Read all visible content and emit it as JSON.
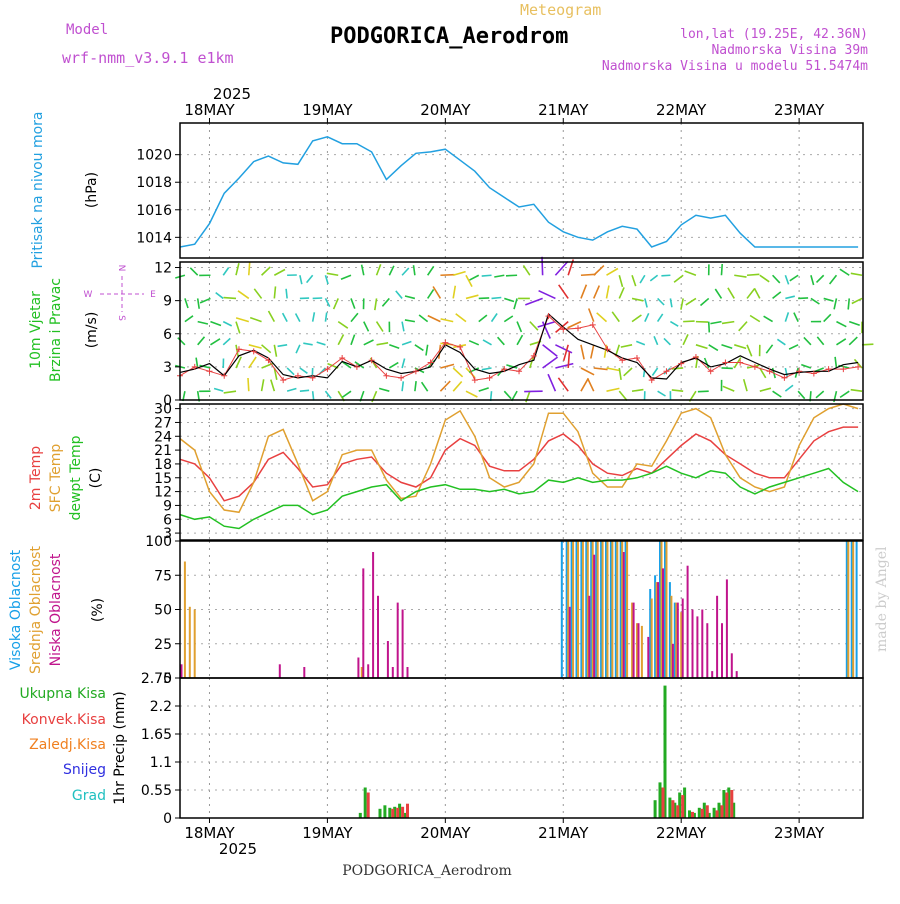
{
  "header": {
    "model_label": "Model",
    "model_name": "wrf-nmm_v3.9.1 e1km",
    "meteogram_label": "Meteogram",
    "station": "PODGORICA_Aerodrom",
    "coords": "lon,lat (19.25E, 42.36N)",
    "elevation": "Nadmorska Visina 39m",
    "model_elevation": "Nadmorska Visina u modelu 51.5474m",
    "year": "2025",
    "footer_station": "PODGORICA_Aerodrom",
    "credit": "made by Angel"
  },
  "colors": {
    "pressure": "#22a0e0",
    "t2m": "#e84040",
    "sfc": "#e0a030",
    "dewpt": "#22c022",
    "high_cloud": "#18a0e8",
    "mid_cloud": "#e0a030",
    "low_cloud": "#c0148c",
    "total_precip": "#22aa22",
    "conv_precip": "#e84040",
    "frozen_precip": "#f08020",
    "snow": "#3030e0",
    "grad": "#20c0c0",
    "wind_label": "#22c022",
    "compass": "#c050d0"
  },
  "compass": {
    "n": "N",
    "s": "S",
    "e": "E",
    "w": "W"
  },
  "chart_data": [
    {
      "type": "line",
      "name": "pressure",
      "ylabel_lines": [
        "Pritisak na nivou mora"
      ],
      "unit": "(hPa)",
      "ylim": [
        1012.5,
        1022.3
      ],
      "yticks": [
        1014,
        1016,
        1018,
        1020
      ],
      "x_days": [
        "18MAY",
        "19MAY",
        "20MAY",
        "21MAY",
        "22MAY",
        "23MAY"
      ],
      "x_hours": [
        0,
        3,
        6,
        9,
        12,
        15,
        18,
        21,
        24,
        27,
        30,
        33,
        36,
        39,
        42,
        45,
        48,
        51,
        54,
        57,
        60,
        63,
        66,
        69,
        72,
        75,
        78,
        81,
        84,
        87,
        90,
        93,
        96,
        99,
        102,
        105,
        108,
        111,
        114,
        117,
        120,
        123,
        126,
        129,
        132,
        135,
        138
      ],
      "values": [
        1013.3,
        1013.5,
        1015.0,
        1017.2,
        1018.3,
        1019.5,
        1019.9,
        1019.4,
        1019.3,
        1021.0,
        1021.3,
        1020.8,
        1020.8,
        1020.2,
        1018.2,
        1019.2,
        1020.1,
        1020.2,
        1020.4,
        1019.6,
        1018.8,
        1017.6,
        1016.9,
        1016.2,
        1016.4,
        1015.1,
        1014.4,
        1014.0,
        1013.8,
        1014.4,
        1014.8,
        1014.6,
        1013.3,
        1013.7,
        1014.9,
        1015.6,
        1015.4,
        1015.6,
        1014.3,
        1013.3,
        1013.3,
        1013.3,
        1013.3,
        1013.3,
        1013.3,
        1013.3,
        1013.3
      ]
    },
    {
      "type": "line",
      "name": "wind",
      "ylabel_lines": [
        "10m Vjetar",
        "Brzina i Pravac"
      ],
      "unit": "(m/s)",
      "ylim": [
        0,
        12.5
      ],
      "yticks": [
        0,
        3,
        6,
        9,
        12
      ],
      "x_hours": [
        0,
        3,
        6,
        9,
        12,
        15,
        18,
        21,
        24,
        27,
        30,
        33,
        36,
        39,
        42,
        45,
        48,
        51,
        54,
        57,
        60,
        63,
        66,
        69,
        72,
        75,
        78,
        81,
        84,
        87,
        90,
        93,
        96,
        99,
        102,
        105,
        108,
        111,
        114,
        117,
        120,
        123,
        126,
        129,
        132,
        135,
        138
      ],
      "values": [
        2.5,
        2.8,
        3.3,
        2.2,
        4.0,
        4.5,
        3.8,
        2.3,
        2.0,
        2.2,
        2.0,
        3.5,
        3.0,
        3.6,
        2.8,
        2.4,
        2.6,
        3.0,
        5.0,
        4.3,
        2.8,
        2.4,
        2.6,
        3.2,
        3.6,
        7.8,
        6.6,
        5.5,
        5.0,
        4.5,
        3.8,
        3.4,
        2.0,
        1.9,
        3.4,
        3.8,
        3.0,
        3.3,
        4.0,
        3.4,
        2.8,
        2.3,
        2.5,
        2.6,
        2.6,
        3.2,
        3.4
      ],
      "gust": [
        2.2,
        3.0,
        2.6,
        2.2,
        4.6,
        4.4,
        3.6,
        1.8,
        2.2,
        2.0,
        2.8,
        3.8,
        3.0,
        3.6,
        2.2,
        2.0,
        2.6,
        3.4,
        5.2,
        4.8,
        1.8,
        2.0,
        2.8,
        2.6,
        4.0,
        7.6,
        6.4,
        6.5,
        6.8,
        4.6,
        3.6,
        3.8,
        1.8,
        2.6,
        3.3,
        3.9,
        2.6,
        3.4,
        3.4,
        3.0,
        2.6,
        2.0,
        2.6,
        2.4,
        2.8,
        2.8,
        3.0
      ]
    },
    {
      "type": "line",
      "name": "temperature",
      "ylabel_lines": [
        "2m Temp",
        "SFC Temp",
        "dewpt Temp"
      ],
      "unit": "(C)",
      "ylim": [
        1.5,
        31
      ],
      "yticks": [
        3,
        6,
        9,
        12,
        15,
        18,
        21,
        24,
        27,
        30
      ],
      "x_hours": [
        0,
        3,
        6,
        9,
        12,
        15,
        18,
        21,
        24,
        27,
        30,
        33,
        36,
        39,
        42,
        45,
        48,
        51,
        54,
        57,
        60,
        63,
        66,
        69,
        72,
        75,
        78,
        81,
        84,
        87,
        90,
        93,
        96,
        99,
        102,
        105,
        108,
        111,
        114,
        117,
        120,
        123,
        126,
        129,
        132,
        135,
        138
      ],
      "series": [
        {
          "name": "2m Temp",
          "color_key": "t2m",
          "values": [
            19,
            18,
            15,
            10,
            11,
            14,
            19,
            20.5,
            17,
            13,
            13.5,
            18,
            19,
            19.5,
            16,
            14,
            13,
            15,
            21,
            23.5,
            22,
            17.5,
            16.5,
            16.5,
            19,
            23,
            24.5,
            22,
            18,
            16,
            15.5,
            17,
            16,
            19,
            22,
            24.5,
            23,
            20,
            18,
            16,
            15,
            15,
            19,
            23,
            25,
            26,
            26
          ]
        },
        {
          "name": "SFC Temp",
          "color_key": "sfc",
          "values": [
            23.5,
            21,
            12,
            8,
            7.5,
            14,
            24,
            25.5,
            18,
            10,
            12,
            20,
            21,
            21,
            14.5,
            10.5,
            11,
            18,
            27.5,
            29.5,
            24,
            15,
            13,
            14,
            18,
            29,
            29,
            25,
            16,
            13,
            13,
            18,
            17.5,
            23,
            29,
            30,
            28,
            20,
            15,
            13,
            12,
            13,
            22,
            28,
            30,
            31,
            30
          ]
        },
        {
          "name": "dewpt Temp",
          "color_key": "dewpt",
          "values": [
            7,
            6,
            6.5,
            4.5,
            4,
            6,
            7.5,
            9,
            9,
            7,
            8,
            11,
            12,
            13,
            13.5,
            10,
            12,
            13,
            13.5,
            12.5,
            12.5,
            12,
            12.5,
            11.5,
            12,
            14.5,
            14,
            15,
            14,
            14.5,
            14.5,
            15,
            16,
            17.5,
            16,
            15,
            16.5,
            16,
            13,
            11.5,
            13,
            14,
            15,
            16,
            17,
            14,
            12
          ]
        }
      ]
    },
    {
      "type": "bar",
      "name": "clouds",
      "ylabel_lines": [
        "Visoka Oblacnost",
        "Srednja Oblacnost",
        "Niska Oblacnost"
      ],
      "unit": "(%)",
      "ylim": [
        0,
        100
      ],
      "yticks": [
        0,
        25,
        50,
        75,
        100
      ],
      "series": [
        {
          "name": "Visoka Oblacnost",
          "color_key": "high_cloud",
          "x_hours": [
            78,
            79,
            80,
            81,
            82,
            83,
            84,
            85,
            86,
            87,
            88,
            89,
            90,
            91,
            96,
            97,
            98,
            99,
            100,
            101,
            136,
            137,
            138
          ],
          "values": [
            100,
            100,
            100,
            100,
            100,
            100,
            100,
            100,
            100,
            100,
            100,
            100,
            100,
            100,
            65,
            75,
            100,
            100,
            70,
            55,
            100,
            100,
            100
          ]
        },
        {
          "name": "Srednja Oblacnost",
          "color_key": "mid_cloud",
          "x_hours": [
            1,
            2,
            3,
            4,
            37,
            79,
            80,
            81,
            82,
            83,
            84,
            85,
            86,
            87,
            88,
            89,
            90,
            91,
            92,
            93,
            94,
            95,
            96,
            97,
            98,
            99,
            100,
            101,
            102,
            136,
            137
          ],
          "values": [
            85,
            52,
            50,
            0,
            8,
            100,
            100,
            100,
            100,
            100,
            100,
            100,
            100,
            100,
            100,
            100,
            100,
            100,
            55,
            40,
            38,
            0,
            58,
            70,
            100,
            100,
            60,
            55,
            48,
            100,
            100
          ]
        },
        {
          "name": "Niska Oblacnost",
          "color_key": "low_cloud",
          "x_hours": [
            0,
            20,
            25,
            36,
            37,
            38,
            39,
            40,
            41,
            42,
            43,
            44,
            45,
            46,
            47,
            48,
            79,
            83,
            84,
            90,
            92,
            93,
            95,
            97,
            98,
            100,
            101,
            102,
            103,
            104,
            105,
            106,
            107,
            108,
            109,
            110,
            111,
            112,
            113,
            114,
            115,
            116,
            117,
            118,
            119,
            120
          ],
          "values": [
            10,
            10,
            8,
            15,
            80,
            10,
            92,
            60,
            0,
            27,
            8,
            55,
            50,
            8,
            0,
            0,
            52,
            60,
            90,
            92,
            55,
            40,
            30,
            70,
            80,
            25,
            55,
            58,
            82,
            50,
            45,
            50,
            40,
            5,
            60,
            40,
            72,
            18,
            5,
            0,
            0,
            0,
            0,
            0,
            0,
            0
          ]
        }
      ]
    },
    {
      "type": "bar",
      "name": "precip",
      "ylabel_lines": [
        "1hr Precip (mm)"
      ],
      "legend": [
        "Ukupna Kisa",
        "Konvek.Kisa",
        "Zaledj.Kisa",
        "Snijeg",
        "Grad"
      ],
      "ylim": [
        0,
        2.75
      ],
      "yticks": [
        0,
        0.55,
        1.1,
        1.65,
        2.2,
        2.75
      ],
      "series": [
        {
          "name": "Ukupna Kisa",
          "color_key": "total_precip",
          "x_hours": [
            37,
            38,
            41,
            42,
            43,
            44,
            45,
            46,
            97,
            98,
            99,
            100,
            101,
            102,
            103,
            104,
            105,
            106,
            107,
            108,
            109,
            110,
            111,
            112,
            113
          ],
          "values": [
            0.1,
            0.6,
            0.18,
            0.25,
            0.2,
            0.22,
            0.28,
            0.1,
            0.35,
            0.7,
            2.6,
            0.4,
            0.3,
            0.5,
            0.6,
            0.15,
            0.1,
            0.2,
            0.3,
            0.1,
            0.2,
            0.3,
            0.55,
            0.6,
            0.3
          ]
        },
        {
          "name": "Konvek.Kisa",
          "color_key": "conv_precip",
          "x_hours": [
            38,
            43,
            44,
            45,
            46,
            98,
            100,
            101,
            102,
            104,
            106,
            107,
            109,
            110,
            111,
            112
          ],
          "values": [
            0.5,
            0.18,
            0.2,
            0.22,
            0.28,
            0.6,
            0.35,
            0.25,
            0.45,
            0.12,
            0.18,
            0.25,
            0.15,
            0.25,
            0.5,
            0.55
          ]
        }
      ]
    }
  ]
}
